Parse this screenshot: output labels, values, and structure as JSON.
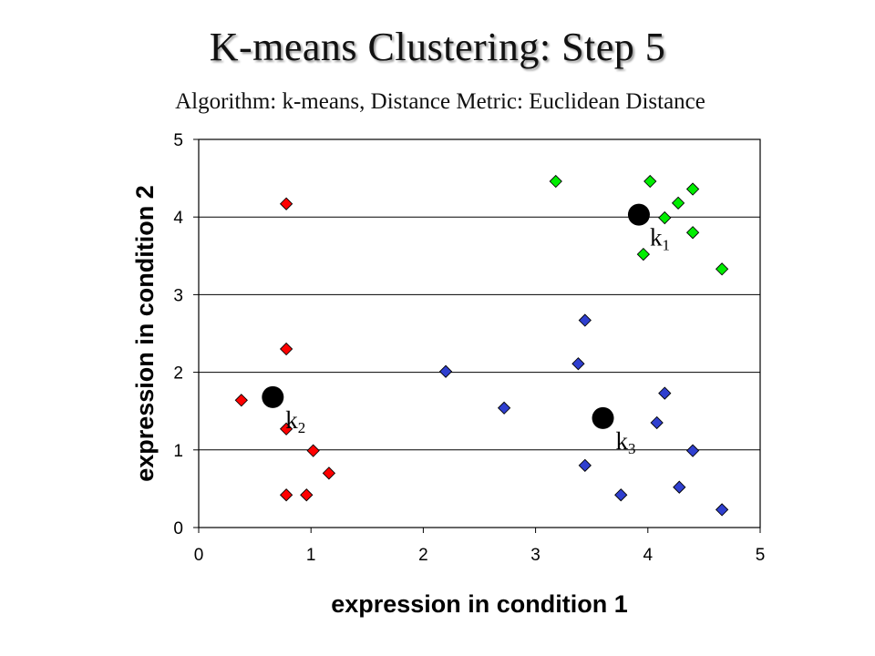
{
  "chart_data": {
    "type": "scatter",
    "title": "K-means Clustering: Step 5",
    "subtitle": "Algorithm: k-means, Distance Metric: Euclidean Distance",
    "xlabel": "expression in condition 1",
    "ylabel": "expression in condition 2",
    "xlim": [
      0,
      5
    ],
    "ylim": [
      0,
      5
    ],
    "xticks": [
      "0",
      "1",
      "2",
      "3",
      "4",
      "5"
    ],
    "yticks": [
      "0",
      "1",
      "2",
      "3",
      "4",
      "5"
    ],
    "grid": "horizontal",
    "legend": "none",
    "series": [
      {
        "color": "#ff0000",
        "marker": "diamond",
        "points": [
          [
            0.78,
            4.17
          ],
          [
            0.78,
            2.3
          ],
          [
            0.38,
            1.64
          ],
          [
            0.78,
            1.27
          ],
          [
            1.02,
            0.99
          ],
          [
            1.16,
            0.7
          ],
          [
            0.78,
            0.42
          ],
          [
            0.96,
            0.42
          ]
        ]
      },
      {
        "color": "#2f3fcf",
        "marker": "diamond",
        "points": [
          [
            3.44,
            2.67
          ],
          [
            2.2,
            2.01
          ],
          [
            3.38,
            2.11
          ],
          [
            2.72,
            1.54
          ],
          [
            4.15,
            1.73
          ],
          [
            4.08,
            1.35
          ],
          [
            4.4,
            0.99
          ],
          [
            3.44,
            0.8
          ],
          [
            3.76,
            0.42
          ],
          [
            4.28,
            0.52
          ],
          [
            4.66,
            0.23
          ]
        ]
      },
      {
        "color": "#00ee00",
        "marker": "diamond",
        "points": [
          [
            3.18,
            4.46
          ],
          [
            4.02,
            4.46
          ],
          [
            4.4,
            4.36
          ],
          [
            4.27,
            4.18
          ],
          [
            4.15,
            3.99
          ],
          [
            4.4,
            3.8
          ],
          [
            3.96,
            3.52
          ],
          [
            4.66,
            3.33
          ]
        ]
      }
    ],
    "centroids": [
      {
        "label": "k",
        "subscript": "1",
        "x": 3.92,
        "y": 4.03,
        "color": "#000000"
      },
      {
        "label": "k",
        "subscript": "2",
        "x": 0.66,
        "y": 1.68,
        "color": "#000000"
      },
      {
        "label": "k",
        "subscript": "3",
        "x": 3.6,
        "y": 1.41,
        "color": "#000000"
      }
    ]
  }
}
